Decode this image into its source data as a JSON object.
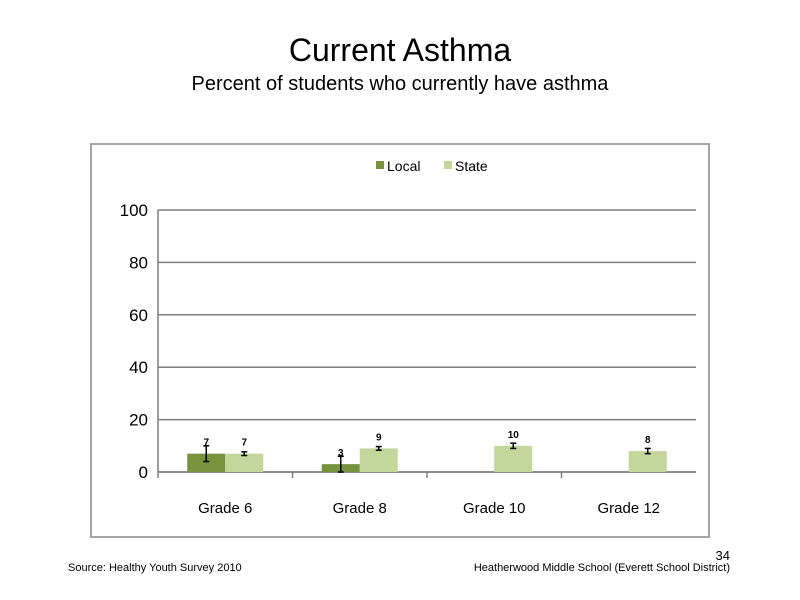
{
  "slide": {
    "title": "Current Asthma",
    "subtitle": "Percent of students who currently have asthma",
    "source": "Source: Healthy Youth Survey 2010",
    "school": "Heatherwood Middle  School (Everett School District)",
    "page_number": "34"
  },
  "chart_data": {
    "type": "bar",
    "title": "",
    "xlabel": "",
    "ylabel": "",
    "ylim": [
      0,
      100
    ],
    "yticks": [
      0,
      20,
      40,
      60,
      80,
      100
    ],
    "grid": true,
    "legend_position": "top",
    "categories": [
      "Grade 6",
      "Grade 8",
      "Grade 10",
      "Grade 12"
    ],
    "series": [
      {
        "name": "Local",
        "color": "#77933c",
        "values": [
          7,
          3,
          null,
          null
        ],
        "labels": [
          "7",
          "3",
          "",
          ""
        ],
        "error_low": [
          4,
          0,
          null,
          null
        ],
        "error_high": [
          10,
          6,
          null,
          null
        ]
      },
      {
        "name": "State",
        "color": "#c3d69b",
        "values": [
          7,
          9,
          10,
          8
        ],
        "labels": [
          "7",
          "9",
          "10",
          "8"
        ],
        "error_low": [
          6.3,
          8.3,
          9,
          7
        ],
        "error_high": [
          7.7,
          9.7,
          11,
          9
        ]
      }
    ]
  }
}
